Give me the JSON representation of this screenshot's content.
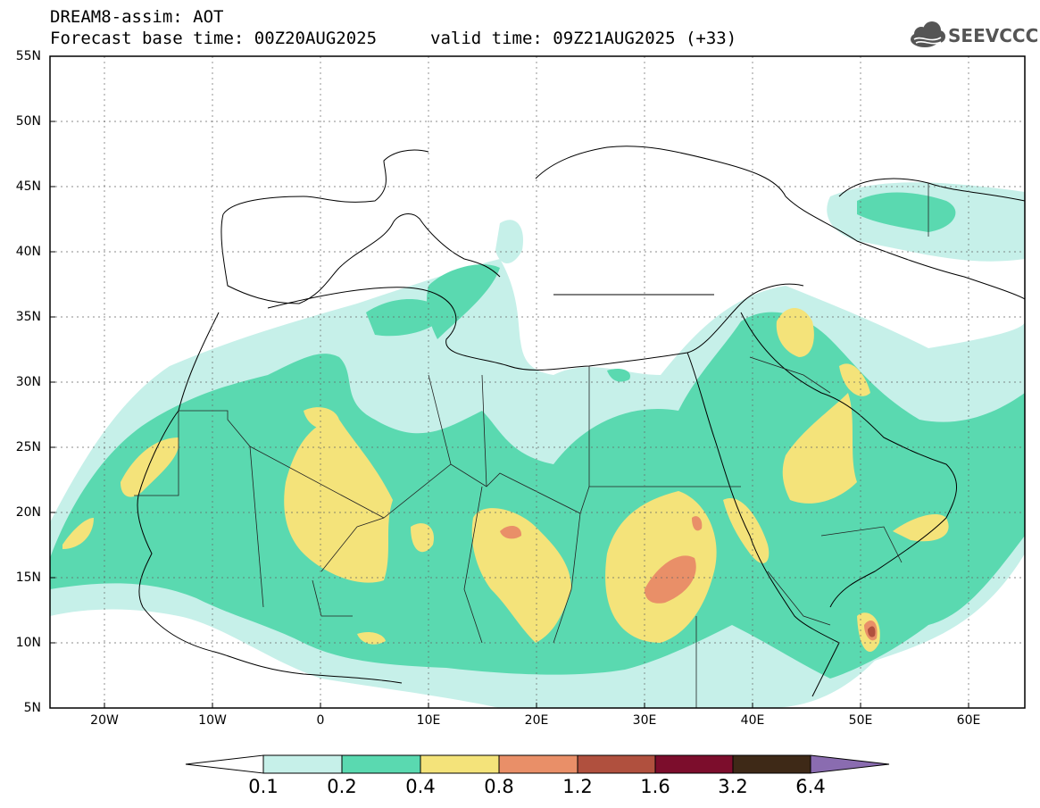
{
  "header": {
    "title_line1": "DREAM8-assim: AOT",
    "title_line2": "Forecast base time: 00Z20AUG2025",
    "valid_time": "valid time: 09Z21AUG2025 (+33)"
  },
  "logo": {
    "text": "SEEVCCC",
    "icon": "cloud-icon"
  },
  "map": {
    "lat_ticks": [
      "55N",
      "50N",
      "45N",
      "40N",
      "35N",
      "30N",
      "25N",
      "20N",
      "15N",
      "10N",
      "5N"
    ],
    "lon_ticks": [
      "20W",
      "10W",
      "0",
      "10E",
      "20E",
      "30E",
      "40E",
      "50E",
      "60E"
    ],
    "lon_range": [
      -25,
      65
    ],
    "lat_range": [
      5,
      55
    ]
  },
  "colorbar": {
    "levels": [
      "0.1",
      "0.2",
      "0.4",
      "0.8",
      "1.2",
      "1.6",
      "3.2",
      "6.4"
    ],
    "colors": [
      "#ffffff",
      "#c6f0e9",
      "#5ad9b0",
      "#f4e37a",
      "#e98f68",
      "#b0503e",
      "#7c0d2c",
      "#3e2917",
      "#8a6cb0"
    ]
  }
}
